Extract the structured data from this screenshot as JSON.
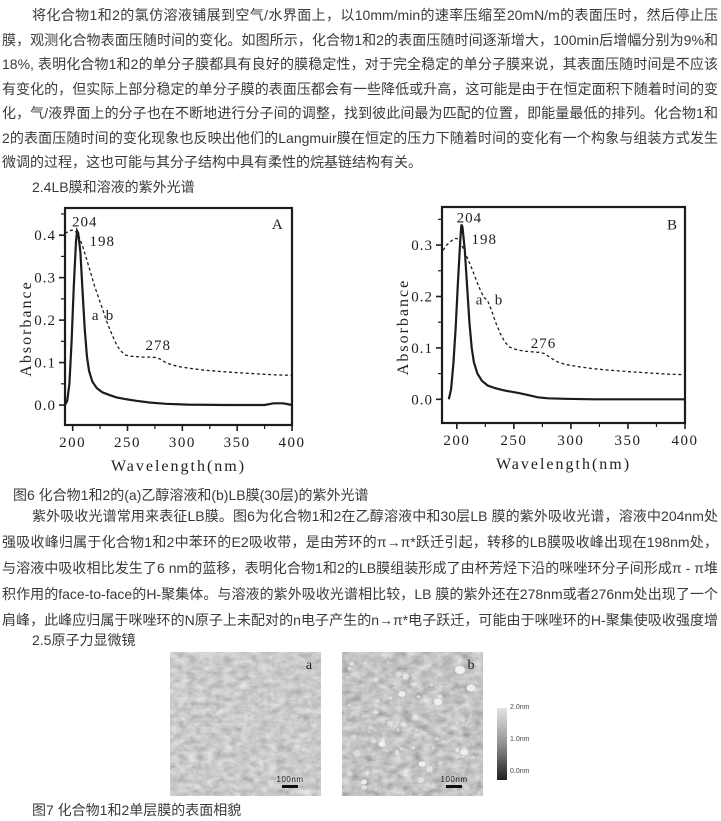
{
  "page": {
    "background": "#ffffff",
    "text_color": "#3a3a3a",
    "line_color": "#1c1c1c"
  },
  "paragraphs": {
    "p1": "将化合物1和2的氯仿溶液铺展到空气/水界面上，以10mm/min的速率压缩至20mN/m的表面压时，然后停止压膜，观测化合物表面压随时间的变化。如图所示，化合物1和2的表面压随时间逐渐增大，100min后增幅分别为9%和18%, 表明化合物1和2的单分子膜都具有良好的膜稳定性，对于完全稳定的单分子膜来说，其表面压随时间是不应该有变化的，但实际上部分稳定的单分子膜的表面压都会有一些降低或升高，这可能是由于在恒定面积下随着时间的变化，气/液界面上的分子也在不断地进行分子间的调整，找到彼此间最为匹配的位置，即能量最低的排列。化合物1和2的表面压随时间的变化现象也反映出他们的Langmuir膜在恒定的压力下随着时间的变化有一个构象与组装方式发生微调的过程，这也可能与其分子结构中具有柔性的烷基链结构有关。",
    "heading_24": "2.4LB膜和溶液的紫外光谱",
    "fig6_caption": "图6 化合物1和2的(a)乙醇溶液和(b)LB膜(30层)的紫外光谱",
    "p2": "紫外吸收光谱常用来表征LB膜。图6为化合物1和2在乙醇溶液中和30层LB 膜的紫外吸收光谱，溶液中204nm处强吸收峰归属于化合物1和2中苯环的E2吸收带，是由芳环的π→π*跃迁引起，转移的LB膜吸收峰出现在198nm处，与溶液中吸收相比发生了6 nm的蓝移，表明化合物1和2的LB膜组装形成了由杯芳烃下沿的咪唑环分子间形成π - π堆积作用的face-to-face的H-聚集体。与溶液的紫外吸收光谱相比较，LB 膜的紫外还在278nm或者276nm处出现了一个肩峰，此峰应归属于咪唑环的N原子上未配对的n电子产生的n→π*电子跃迁，可能由于咪唑环的H-聚集使吸收强度增大而呈现出来。",
    "heading_25": "2.5原子力显微镜",
    "fig7_caption": "图7 化合物1和2单层膜的表面相貌"
  },
  "chart_data": [
    {
      "type": "line",
      "panel_label": "A",
      "title": "",
      "xlabel": "Wavelength(nm)",
      "ylabel": "Absorbance",
      "xlim": [
        193,
        400
      ],
      "ylim": [
        -0.047,
        0.464
      ],
      "x_ticks": [
        200,
        250,
        300,
        350,
        400
      ],
      "y_ticks": [
        0.0,
        0.1,
        0.2,
        0.3,
        0.4
      ],
      "grid": false,
      "legend": "inline-letters",
      "series": [
        {
          "name": "a",
          "description": "乙醇溶液 (ethanol solution)",
          "style": "solid",
          "peak_nm": 204,
          "peak_absorbance": 0.41,
          "points": [
            [
              193,
              0
            ],
            [
              195,
              0.01
            ],
            [
              197,
              0.05
            ],
            [
              199,
              0.15
            ],
            [
              201,
              0.28
            ],
            [
              203,
              0.385
            ],
            [
              204,
              0.41
            ],
            [
              205,
              0.405
            ],
            [
              207,
              0.36
            ],
            [
              209,
              0.27
            ],
            [
              211,
              0.18
            ],
            [
              213,
              0.115
            ],
            [
              215,
              0.08
            ],
            [
              218,
              0.055
            ],
            [
              222,
              0.04
            ],
            [
              227,
              0.03
            ],
            [
              233,
              0.024
            ],
            [
              240,
              0.018
            ],
            [
              248,
              0.014
            ],
            [
              258,
              0.01
            ],
            [
              270,
              0.006
            ],
            [
              285,
              0.003
            ],
            [
              305,
              0.001
            ],
            [
              340,
              0
            ],
            [
              375,
              0
            ],
            [
              383,
              0.004
            ],
            [
              392,
              0.004
            ],
            [
              400,
              0
            ]
          ]
        },
        {
          "name": "b",
          "description": "LB膜 30层 (LB film, 30 layers)",
          "style": "dashed",
          "peak_nm": 198,
          "shoulder_nm": 278,
          "points": [
            [
              193,
              0.405
            ],
            [
              196,
              0.408
            ],
            [
              199,
              0.412
            ],
            [
              202,
              0.41
            ],
            [
              204,
              0.405
            ],
            [
              206,
              0.395
            ],
            [
              209,
              0.375
            ],
            [
              212,
              0.35
            ],
            [
              216,
              0.315
            ],
            [
              220,
              0.28
            ],
            [
              224,
              0.25
            ],
            [
              228,
              0.22
            ],
            [
              232,
              0.19
            ],
            [
              236,
              0.165
            ],
            [
              240,
              0.142
            ],
            [
              244,
              0.127
            ],
            [
              248,
              0.118
            ],
            [
              252,
              0.115
            ],
            [
              258,
              0.114
            ],
            [
              264,
              0.113
            ],
            [
              270,
              0.113
            ],
            [
              276,
              0.112
            ],
            [
              280,
              0.108
            ],
            [
              285,
              0.1
            ],
            [
              291,
              0.094
            ],
            [
              298,
              0.09
            ],
            [
              308,
              0.086
            ],
            [
              320,
              0.082
            ],
            [
              335,
              0.079
            ],
            [
              352,
              0.076
            ],
            [
              370,
              0.073
            ],
            [
              385,
              0.071
            ],
            [
              400,
              0.07
            ]
          ]
        }
      ],
      "annotations": [
        {
          "text": "204",
          "x": 211,
          "y": 0.42
        },
        {
          "text": "198",
          "x": 227,
          "y": 0.375
        },
        {
          "text": "a",
          "x": 221,
          "y": 0.2
        },
        {
          "text": "b",
          "x": 234,
          "y": 0.2
        },
        {
          "text": "278",
          "x": 278,
          "y": 0.13
        },
        {
          "text": "A",
          "x": 387,
          "y": 0.414
        }
      ]
    },
    {
      "type": "line",
      "panel_label": "B",
      "title": "",
      "xlabel": "Wavelength(nm)",
      "ylabel": "Absorbance",
      "xlim": [
        187,
        400
      ],
      "ylim": [
        -0.046,
        0.374
      ],
      "x_ticks": [
        200,
        250,
        300,
        350,
        400
      ],
      "y_ticks": [
        0.0,
        0.1,
        0.2,
        0.3
      ],
      "grid": false,
      "legend": "inline-letters",
      "series": [
        {
          "name": "a",
          "description": "乙醇溶液 (ethanol solution)",
          "style": "solid",
          "peak_nm": 204,
          "peak_absorbance": 0.34,
          "points": [
            [
              193,
              0
            ],
            [
              195,
              0.02
            ],
            [
              197,
              0.07
            ],
            [
              199,
              0.14
            ],
            [
              201,
              0.23
            ],
            [
              203,
              0.31
            ],
            [
              204,
              0.34
            ],
            [
              205,
              0.335
            ],
            [
              207,
              0.29
            ],
            [
              209,
              0.22
            ],
            [
              211,
              0.15
            ],
            [
              213,
              0.1
            ],
            [
              215,
              0.072
            ],
            [
              218,
              0.05
            ],
            [
              222,
              0.036
            ],
            [
              227,
              0.027
            ],
            [
              233,
              0.022
            ],
            [
              240,
              0.018
            ],
            [
              247,
              0.015
            ],
            [
              255,
              0.012
            ],
            [
              263,
              0.008
            ],
            [
              271,
              0.004
            ],
            [
              280,
              0.002
            ],
            [
              295,
              0.001
            ],
            [
              320,
              0
            ],
            [
              360,
              0
            ],
            [
              400,
              0
            ]
          ]
        },
        {
          "name": "b",
          "description": "LB膜 30层 (LB film, 30 layers)",
          "style": "dashed",
          "peak_nm": 198,
          "shoulder_nm": 276,
          "points": [
            [
              188,
              0.29
            ],
            [
              191,
              0.3
            ],
            [
              194,
              0.306
            ],
            [
              197,
              0.311
            ],
            [
              199,
              0.313
            ],
            [
              201,
              0.312
            ],
            [
              203,
              0.305
            ],
            [
              206,
              0.292
            ],
            [
              209,
              0.276
            ],
            [
              213,
              0.255
            ],
            [
              217,
              0.232
            ],
            [
              221,
              0.21
            ],
            [
              224,
              0.198
            ],
            [
              227,
              0.192
            ],
            [
              230,
              0.175
            ],
            [
              234,
              0.15
            ],
            [
              238,
              0.128
            ],
            [
              242,
              0.112
            ],
            [
              246,
              0.102
            ],
            [
              250,
              0.098
            ],
            [
              256,
              0.095
            ],
            [
              262,
              0.093
            ],
            [
              268,
              0.092
            ],
            [
              273,
              0.091
            ],
            [
              277,
              0.089
            ],
            [
              282,
              0.081
            ],
            [
              288,
              0.073
            ],
            [
              295,
              0.068
            ],
            [
              305,
              0.064
            ],
            [
              318,
              0.06
            ],
            [
              332,
              0.057
            ],
            [
              350,
              0.054
            ],
            [
              370,
              0.051
            ],
            [
              385,
              0.049
            ],
            [
              400,
              0.048
            ]
          ]
        }
      ],
      "annotations": [
        {
          "text": "204",
          "x": 211,
          "y": 0.344
        },
        {
          "text": "198",
          "x": 224,
          "y": 0.302
        },
        {
          "text": "a",
          "x": 220,
          "y": 0.184
        },
        {
          "text": "b",
          "x": 237,
          "y": 0.184
        },
        {
          "text": "276",
          "x": 276,
          "y": 0.1
        },
        {
          "text": "B",
          "x": 389,
          "y": 0.33
        }
      ]
    }
  ],
  "afm": {
    "images": [
      {
        "label": "a",
        "scalebar": "100nm"
      },
      {
        "label": "b",
        "scalebar": "100nm"
      }
    ],
    "colorbar": {
      "labels": [
        "2.0nm",
        "1.0nm",
        "0.0nm"
      ]
    }
  }
}
